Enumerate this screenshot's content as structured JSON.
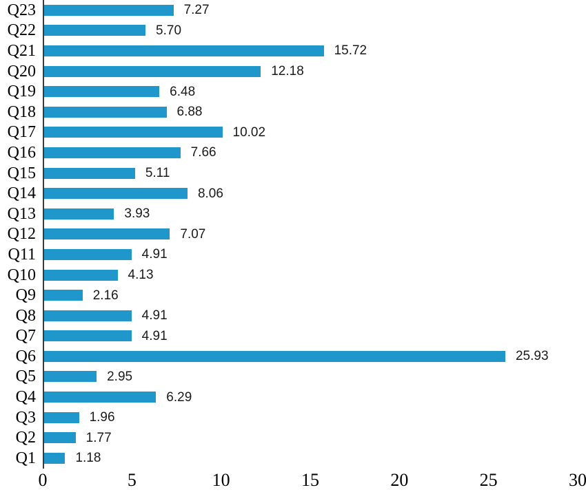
{
  "chart_data": {
    "type": "bar",
    "orientation": "horizontal",
    "title": "",
    "xlabel": "",
    "ylabel": "",
    "categories": [
      "Q1",
      "Q2",
      "Q3",
      "Q4",
      "Q5",
      "Q6",
      "Q7",
      "Q8",
      "Q9",
      "Q10",
      "Q11",
      "Q12",
      "Q13",
      "Q14",
      "Q15",
      "Q16",
      "Q17",
      "Q18",
      "Q19",
      "Q20",
      "Q21",
      "Q22",
      "Q23"
    ],
    "values": [
      1.18,
      1.77,
      1.96,
      6.29,
      2.95,
      25.93,
      4.91,
      4.91,
      2.16,
      4.13,
      4.91,
      7.07,
      3.93,
      8.06,
      5.11,
      7.66,
      10.02,
      6.88,
      6.48,
      12.18,
      15.72,
      5.7,
      7.27
    ],
    "value_labels": [
      "1.18",
      "1.77",
      "1.96",
      "6.29",
      "2.95",
      "25.93",
      "4.91",
      "4.91",
      "2.16",
      "4.13",
      "4.91",
      "7.07",
      "3.93",
      "8.06",
      "5.11",
      "7.66",
      "10.02",
      "6.88",
      "6.48",
      "12.18",
      "15.72",
      "5.70",
      "7.27"
    ],
    "category_display_order": "reversed (Q23 at top, Q1 at bottom)",
    "x_ticks": [
      "0",
      "5",
      "10",
      "15",
      "20",
      "25",
      "30"
    ],
    "xlim": [
      0,
      30
    ],
    "grid": false,
    "legend": false,
    "bar_color": "#2097ca",
    "axis_color": "#3a3a3a",
    "value_label_color": "#1a1a1a",
    "tick_label_color": "#000000"
  }
}
